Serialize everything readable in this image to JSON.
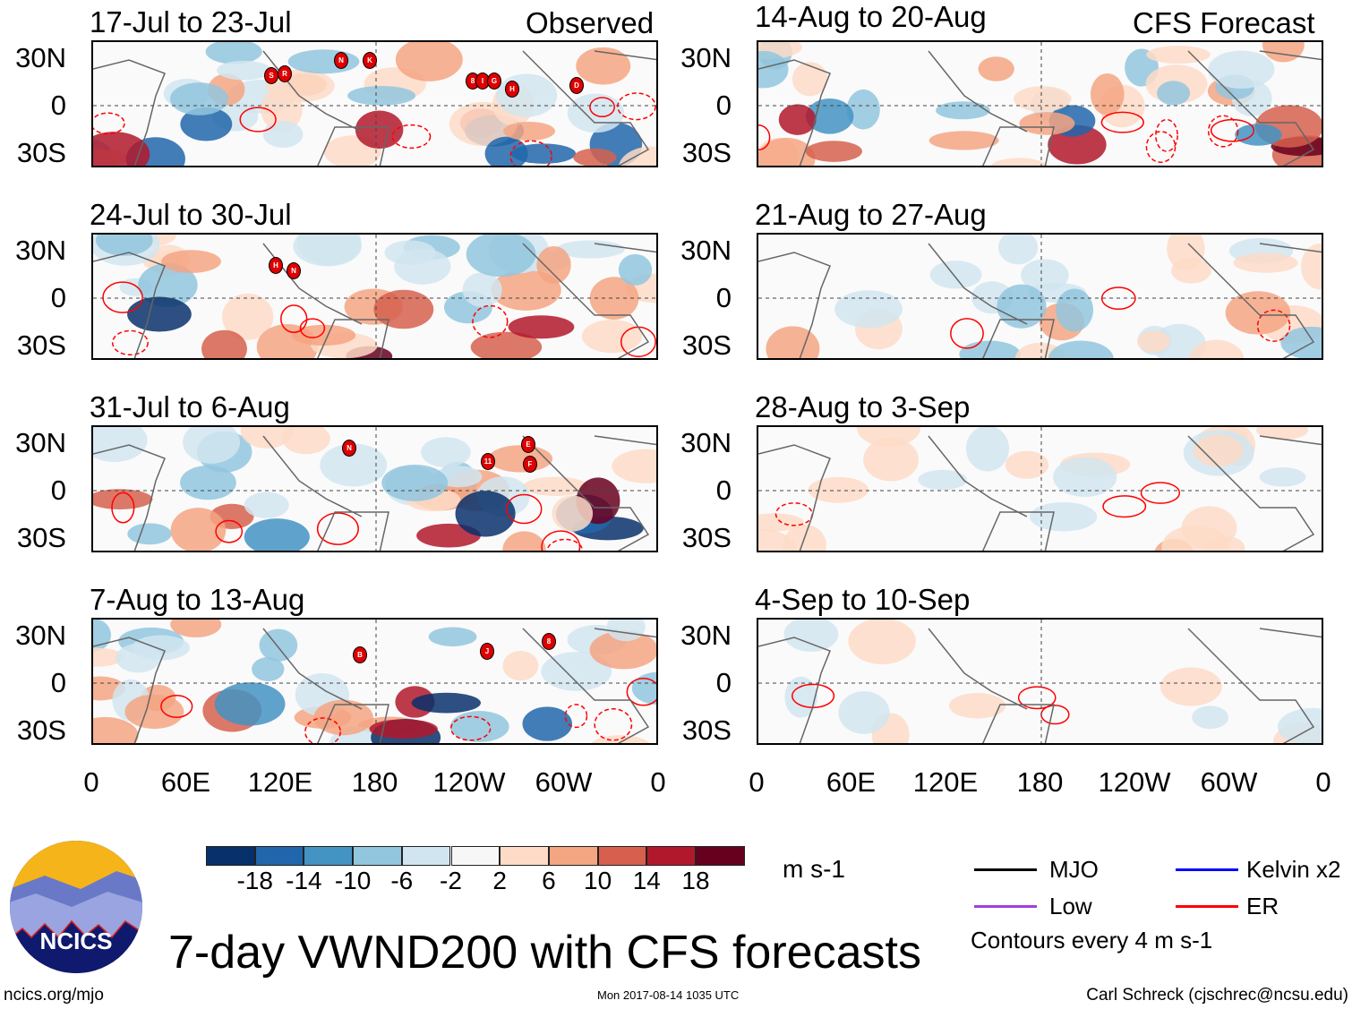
{
  "panel_headers": {
    "observed": "Observed",
    "forecast": "CFS Forecast"
  },
  "panels_observed": [
    {
      "title": "17-Jul to 23-Jul",
      "storms": [
        "S",
        "R",
        "N",
        "K",
        "8",
        "I",
        "G",
        "H",
        "D"
      ]
    },
    {
      "title": "24-Jul to 30-Jul",
      "storms": [
        "H",
        "N"
      ]
    },
    {
      "title": "31-Jul to 6-Aug",
      "storms": [
        "N",
        "11",
        "E",
        "F"
      ]
    },
    {
      "title": "7-Aug to 13-Aug",
      "storms": [
        "B",
        "J",
        "8"
      ]
    }
  ],
  "panels_forecast": [
    {
      "title": "14-Aug to 20-Aug",
      "amp": 1.0
    },
    {
      "title": "21-Aug to 27-Aug",
      "amp": 0.5
    },
    {
      "title": "28-Aug to 3-Sep",
      "amp": 0.35
    },
    {
      "title": "4-Sep to 10-Sep",
      "amp": 0.25
    }
  ],
  "lat_labels": [
    "30N",
    "0",
    "30S"
  ],
  "lon_labels": [
    "0",
    "60E",
    "120E",
    "180",
    "120W",
    "60W",
    "0"
  ],
  "colorbar": {
    "colors": [
      "#08306b",
      "#2166ac",
      "#4393c3",
      "#92c5de",
      "#d1e5f0",
      "#f7f7f7",
      "#fddbc7",
      "#f4a582",
      "#d6604d",
      "#b2182b",
      "#67001f"
    ],
    "labels": [
      "-18",
      "-14",
      "-10",
      "-6",
      "-2",
      "2",
      "6",
      "10",
      "14",
      "18"
    ],
    "units": "m s-1"
  },
  "legend": {
    "items": [
      {
        "label": "MJO",
        "color": "#000000"
      },
      {
        "label": "Kelvin x2",
        "color": "#0000ff"
      },
      {
        "label": "Low",
        "color": "#a040e0"
      },
      {
        "label": "ER",
        "color": "#ff0000"
      }
    ],
    "contours_note": "Contours every 4 m s-1"
  },
  "logo_text": "NCICS",
  "main_title": "7-day VWND200 with CFS forecasts",
  "footer": {
    "url": "ncics.org/mjo",
    "timestamp": "Mon 2017-08-14 1035 UTC",
    "author": "Carl Schreck (cjschrec@ncsu.edu)"
  }
}
